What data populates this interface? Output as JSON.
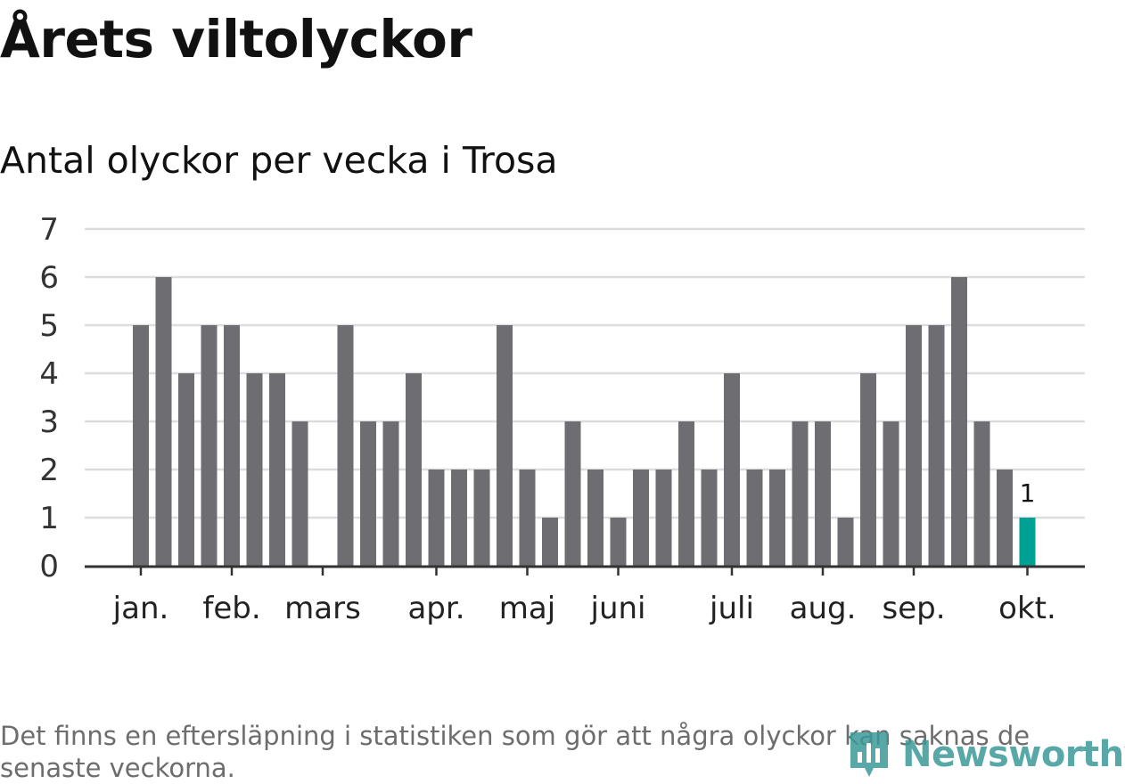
{
  "header": {
    "title": "Årets viltolyckor",
    "subtitle": "Antal olyckor per vecka i Trosa"
  },
  "chart_data": {
    "type": "bar",
    "title": "Årets viltolyckor",
    "subtitle": "Antal olyckor per vecka i Trosa",
    "values": [
      5,
      6,
      4,
      5,
      5,
      4,
      4,
      3,
      0,
      5,
      3,
      3,
      4,
      2,
      2,
      2,
      5,
      2,
      1,
      3,
      2,
      1,
      2,
      2,
      3,
      2,
      4,
      2,
      2,
      3,
      3,
      1,
      4,
      3,
      5,
      5,
      6,
      3,
      2,
      1
    ],
    "month_labels": [
      {
        "label": "jan.",
        "week": 1
      },
      {
        "label": "feb.",
        "week": 5
      },
      {
        "label": "mars",
        "week": 9
      },
      {
        "label": "apr.",
        "week": 14
      },
      {
        "label": "maj",
        "week": 18
      },
      {
        "label": "juni",
        "week": 22
      },
      {
        "label": "juli",
        "week": 27
      },
      {
        "label": "aug.",
        "week": 31
      },
      {
        "label": "sep.",
        "week": 35
      },
      {
        "label": "okt.",
        "week": 40
      }
    ],
    "ylim": [
      0,
      7
    ],
    "yticks": [
      0,
      1,
      2,
      3,
      4,
      5,
      6,
      7
    ],
    "grid": true,
    "highlight_last": true,
    "highlight_label": "1",
    "colors": {
      "bar": "#6e6d72",
      "highlight": "#00a195",
      "grid": "#dddddd",
      "axis": "#333333"
    }
  },
  "footer": {
    "note": "Det finns en eftersläpning i statistiken som gör att några olyckor kan saknas de senaste veckorna.",
    "logo_text": "Newsworthy",
    "logo_icon": "newsworthy-logo-icon"
  }
}
